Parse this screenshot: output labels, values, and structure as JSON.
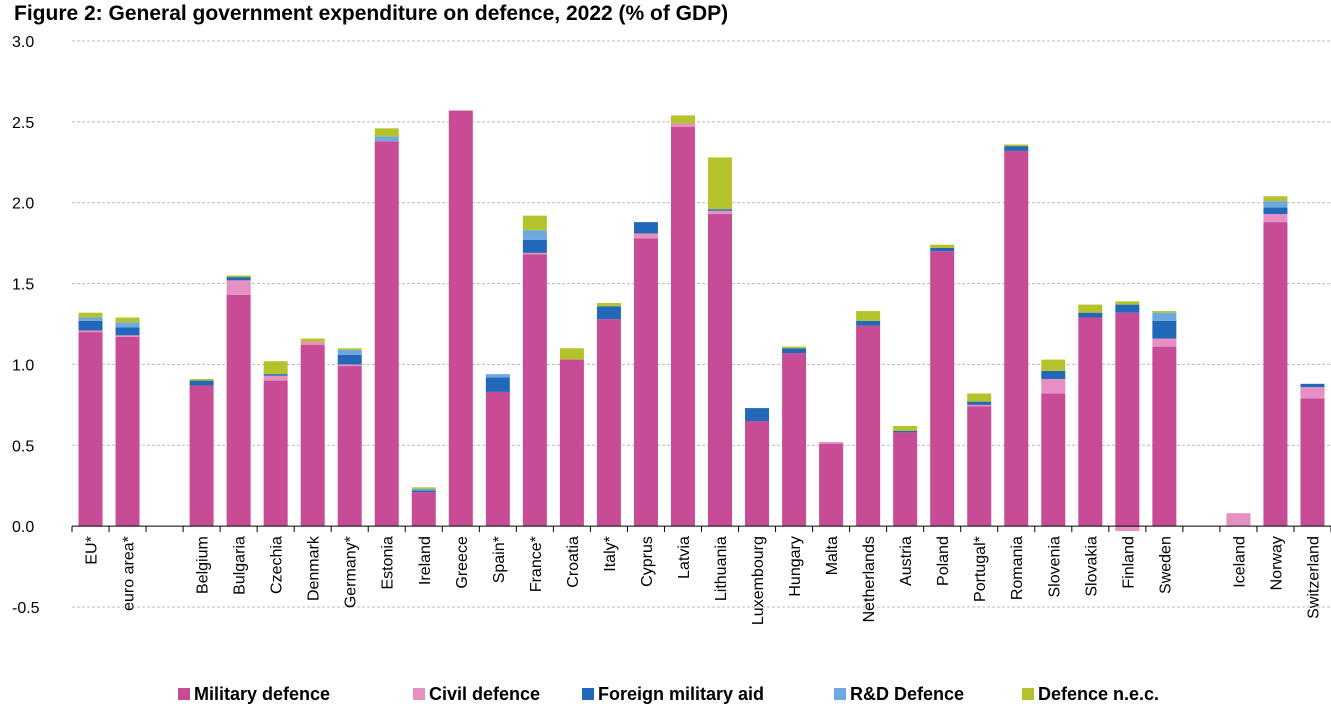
{
  "chart_data": {
    "type": "bar",
    "stacked": true,
    "title": "Figure 2: General government expenditure on defence, 2022 (% of GDP)",
    "xlabel": "",
    "ylabel": "",
    "ylim": [
      -0.5,
      3.0
    ],
    "yticks": [
      "3.0",
      "2.5",
      "2.0",
      "1.5",
      "1.0",
      "0.5",
      "0.0",
      "-0.5"
    ],
    "ytick_values": [
      3.0,
      2.5,
      2.0,
      1.5,
      1.0,
      0.5,
      0.0,
      -0.5
    ],
    "grid": true,
    "legend_position": "bottom",
    "categories": [
      "EU*",
      "euro area*",
      "",
      "Belgium",
      "Bulgaria",
      "Czechia",
      "Denmark",
      "Germany*",
      "Estonia",
      "Ireland",
      "Greece",
      "Spain*",
      "France*",
      "Croatia",
      "Italy*",
      "Cyprus",
      "Latvia",
      "Lithuania",
      "Luxembourg",
      "Hungary",
      "Malta",
      "Netherlands",
      "Austria",
      "Poland",
      "Portugal*",
      "Romania",
      "Slovenia",
      "Slovakia",
      "Finland",
      "Sweden",
      "",
      "Iceland",
      "Norway",
      "Switzerland"
    ],
    "series": [
      {
        "name": "Military defence",
        "color": "#c84b96",
        "values": [
          1.2,
          1.17,
          null,
          0.87,
          1.43,
          0.9,
          1.12,
          0.99,
          2.38,
          0.21,
          2.57,
          0.83,
          1.68,
          1.03,
          1.28,
          1.78,
          2.47,
          1.93,
          0.65,
          1.07,
          0.51,
          1.24,
          0.58,
          1.7,
          0.74,
          2.32,
          0.82,
          1.29,
          1.32,
          1.11,
          null,
          0.0,
          1.88,
          0.79
        ]
      },
      {
        "name": "Civil defence",
        "color": "#e68fc2",
        "values": [
          0.01,
          0.01,
          null,
          0.0,
          0.09,
          0.03,
          0.02,
          0.01,
          0.0,
          0.0,
          0.0,
          0.0,
          0.01,
          0.0,
          0.0,
          0.03,
          0.02,
          0.02,
          0.0,
          0.0,
          0.01,
          0.0,
          0.0,
          0.0,
          0.01,
          0.0,
          0.09,
          0.0,
          -0.03,
          0.05,
          null,
          0.08,
          0.05,
          0.07
        ]
      },
      {
        "name": "Foreign military aid",
        "color": "#2169b8",
        "values": [
          0.06,
          0.05,
          null,
          0.03,
          0.02,
          0.01,
          0.0,
          0.06,
          0.0,
          0.01,
          0.0,
          0.09,
          0.08,
          0.0,
          0.08,
          0.07,
          0.0,
          0.01,
          0.08,
          0.03,
          0.0,
          0.03,
          0.01,
          0.02,
          0.02,
          0.03,
          0.05,
          0.03,
          0.05,
          0.11,
          null,
          0.0,
          0.04,
          0.02
        ]
      },
      {
        "name": "R&D Defence",
        "color": "#6fa8e0",
        "values": [
          0.02,
          0.03,
          null,
          0.0,
          0.0,
          0.0,
          0.0,
          0.03,
          0.03,
          0.01,
          0.0,
          0.02,
          0.06,
          0.0,
          0.0,
          0.0,
          0.0,
          0.0,
          0.0,
          0.0,
          0.0,
          0.0,
          0.0,
          0.0,
          0.0,
          0.0,
          0.0,
          0.0,
          0.0,
          0.05,
          null,
          0.0,
          0.04,
          0.0
        ]
      },
      {
        "name": "Defence n.e.c.",
        "color": "#b4c22b",
        "values": [
          0.03,
          0.03,
          null,
          0.01,
          0.01,
          0.08,
          0.02,
          0.01,
          0.05,
          0.01,
          0.0,
          0.0,
          0.09,
          0.07,
          0.02,
          0.0,
          0.05,
          0.32,
          0.0,
          0.01,
          0.0,
          0.06,
          0.03,
          0.02,
          0.05,
          0.01,
          0.07,
          0.05,
          0.02,
          0.01,
          null,
          0.0,
          0.03,
          0.0
        ]
      }
    ]
  }
}
